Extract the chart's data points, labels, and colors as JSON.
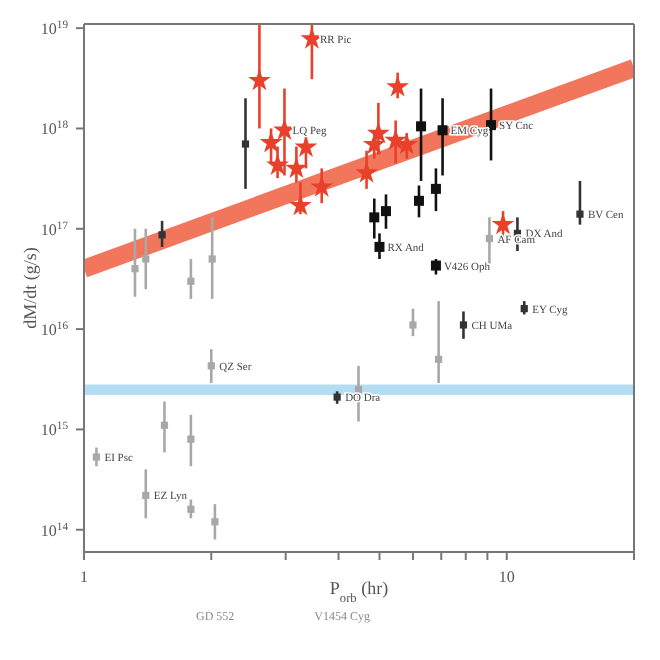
{
  "chart_data": {
    "type": "scatter",
    "xlabel": "P$_{orb}$ (hr)",
    "ylabel": "dM/dt (g/s)",
    "log": "xy",
    "xlim": [
      1,
      20
    ],
    "xticks": [
      1,
      {
        "value": 2,
        "label": null
      },
      {
        "value": 3,
        "label": null
      },
      {
        "value": 4,
        "label": null
      },
      {
        "value": 5,
        "label": null
      },
      {
        "value": 6,
        "label": null
      },
      {
        "value": 7,
        "label": null
      },
      {
        "value": 8,
        "label": null
      },
      {
        "value": 9,
        "label": null
      },
      10,
      {
        "value": 20,
        "label": null
      }
    ],
    "ylim": [
      60000000000000.0,
      1.1e+19
    ],
    "yticks": [
      {
        "value": 100000000000000.0,
        "label": "10$^{14}$"
      },
      {
        "value": 1000000000000000.0,
        "label": "10$^{15}$"
      },
      {
        "value": 1e+16,
        "label": "10$^{16}$"
      },
      {
        "value": 1e+17,
        "label": "10$^{17}$"
      },
      {
        "value": 1e+18,
        "label": "10$^{18}$"
      },
      {
        "value": 1e+19,
        "label": "10$^{19}$"
      }
    ],
    "bands": [
      {
        "axis": "y",
        "from": 2200000000000000.0,
        "to": 2800000000000000.0,
        "color": "#b3ddf2"
      }
    ],
    "series": [
      {
        "type": "line",
        "color": "#f2765c",
        "x": [
          1,
          20
        ],
        "values": [
          4e+16,
          4e+18
        ]
      },
      {
        "color": "#a8a8a8",
        "marker": "square",
        "x": [
          1.07,
          1.4,
          1.79,
          2.04,
          1.55,
          1.79,
          2.0,
          1.32,
          1.4,
          2.01,
          1.79,
          9.1,
          6.9,
          4.46,
          6.0
        ],
        "values": [
          530000000000000.0,
          220000000000000.0,
          160000000000000.0,
          120000000000000.0,
          1100000000000000.0,
          800000000000000.0,
          4300000000000000.0,
          4e+16,
          5e+16,
          5e+16,
          3e+16,
          8e+16,
          5000000000000000.0,
          2500000000000000.0,
          1.1e+16
        ],
        "errors": [
          [
            430000000000000.0,
            660000000000000.0
          ],
          [
            130000000000000.0,
            400000000000000.0
          ],
          [
            130000000000000.0,
            200000000000000.0
          ],
          [
            80000000000000.0,
            180000000000000.0
          ],
          [
            590000000000000.0,
            1900000000000000.0
          ],
          [
            430000000000000.0,
            1400000000000000.0
          ],
          [
            2900000000000000.0,
            6300000000000000.0
          ],
          [
            2.1e+16,
            1e+17
          ],
          [
            2.5e+16,
            1e+17
          ],
          [
            2e+16,
            1.3e+17
          ],
          [
            2e+16,
            5e+16
          ],
          [
            4.5e+16,
            1.3e+17
          ],
          [
            2900000000000000.0,
            1.9e+16
          ],
          [
            1200000000000000.0,
            4300000000000000.0
          ],
          [
            8500000000000000.0,
            1.6e+16
          ]
        ]
      },
      {
        "color": "#333333",
        "marker": "square",
        "x": [
          3.97,
          11.0,
          7.9,
          14.9,
          10.6,
          2.41,
          1.53
        ],
        "values": [
          2100000000000000.0,
          1.6e+16,
          1.1e+16,
          1.4e+17,
          9e+16,
          7e+17,
          8.7e+16
        ],
        "errors": [
          [
            1800000000000000.0,
            2400000000000000.0
          ],
          [
            1.4e+16,
            1.9e+16
          ],
          [
            8000000000000000.0,
            1.5e+16
          ],
          [
            1.1e+17,
            3e+17
          ],
          [
            6e+16,
            1.3e+17
          ],
          [
            2.5e+17,
            2e+18
          ],
          [
            6.6e+16,
            1.2e+17
          ]
        ]
      },
      {
        "color": "#111111",
        "marker": "square",
        "x": [
          6.27,
          7.05,
          9.18,
          6.8,
          6.2,
          5.18,
          4.86,
          5.0,
          6.8
        ],
        "values": [
          1.05e+18,
          9.6e+17,
          1.08e+18,
          2.5e+17,
          1.9e+17,
          1.5e+17,
          1.3e+17,
          6.6e+16,
          4.3e+16
        ],
        "errors": [
          [
            3e+17,
            2.5e+18
          ],
          [
            3.4e+17,
            2e+18
          ],
          [
            4.8e+17,
            2.5e+18
          ],
          [
            1.5e+17,
            4e+17
          ],
          [
            1.3e+17,
            2.7e+17
          ],
          [
            1e+17,
            2.2e+17
          ],
          [
            8e+16,
            2e+17
          ],
          [
            5e+16,
            9e+16
          ],
          [
            3.5e+16,
            5e+16
          ]
        ]
      },
      {
        "color": "#e8402a",
        "marker": "star",
        "x": [
          3.46,
          2.6,
          2.98,
          2.77,
          2.87,
          3.18,
          3.35,
          3.25,
          3.65,
          5.52,
          4.97,
          4.86,
          5.46,
          5.8,
          4.66,
          9.8
        ],
        "values": [
          7.8e+18,
          3e+18,
          9.6e+17,
          7.2e+17,
          4.3e+17,
          4e+17,
          6.5e+17,
          1.7e+17,
          2.6e+17,
          2.6e+18,
          8.9e+17,
          6.9e+17,
          7.6e+17,
          6.9e+17,
          3.6e+17,
          1.1e+17
        ],
        "errors": [
          [
            3.1e+18,
            1.1e+19
          ],
          [
            1e+18,
            1.1e+19
          ],
          [
            3.4e+17,
            2.5e+18
          ],
          [
            4.5e+17,
            1e+18
          ],
          [
            3.2e+17,
            6.6e+17
          ],
          [
            2.9e+17,
            6.6e+17
          ],
          [
            4e+17,
            1e+18
          ],
          [
            1.4e+17,
            2.9e+17
          ],
          [
            1.8e+17,
            4e+17
          ],
          [
            2e+18,
            3.6e+18
          ],
          [
            5.5e+17,
            1.8e+18
          ],
          [
            5e+17,
            9e+17
          ],
          [
            4.5e+17,
            1.2e+18
          ],
          [
            5e+17,
            9e+17
          ],
          [
            2.5e+17,
            6e+17
          ],
          [
            8e+16,
            1.5e+17
          ]
        ]
      }
    ],
    "annotations": [
      {
        "text": "RR Pic",
        "x": 3.46,
        "y": 7.8e+18
      },
      {
        "text": "LQ Peg",
        "x": 2.98,
        "y": 9.6e+17
      },
      {
        "text": "EM Cyg",
        "x": 7.05,
        "y": 9.6e+17
      },
      {
        "text": "SY Cnc",
        "x": 9.18,
        "y": 1.08e+18
      },
      {
        "text": "RX And",
        "x": 5.0,
        "y": 6.6e+16
      },
      {
        "text": "V426 Oph",
        "x": 6.8,
        "y": 4.3e+16
      },
      {
        "text": "DO Dra",
        "x": 3.97,
        "y": 2100000000000000.0
      },
      {
        "text": "EY Cyg",
        "x": 11.0,
        "y": 1.6e+16
      },
      {
        "text": "CH UMa",
        "x": 7.9,
        "y": 1.1e+16
      },
      {
        "text": "BV Cen",
        "x": 14.9,
        "y": 1.4e+17
      },
      {
        "text": "DX And",
        "x": 10.6,
        "y": 9e+16
      },
      {
        "text": "EI Psc",
        "x": 1.07,
        "y": 530000000000000.0
      },
      {
        "text": "EZ Lyn",
        "x": 1.4,
        "y": 220000000000000.0
      },
      {
        "text": "QZ Ser",
        "x": 2.0,
        "y": 4300000000000000.0
      },
      {
        "text": "AF Cam",
        "x": 9.1,
        "y": 8e+16
      },
      "GD 552",
      "V1454 Cyg"
    ]
  }
}
